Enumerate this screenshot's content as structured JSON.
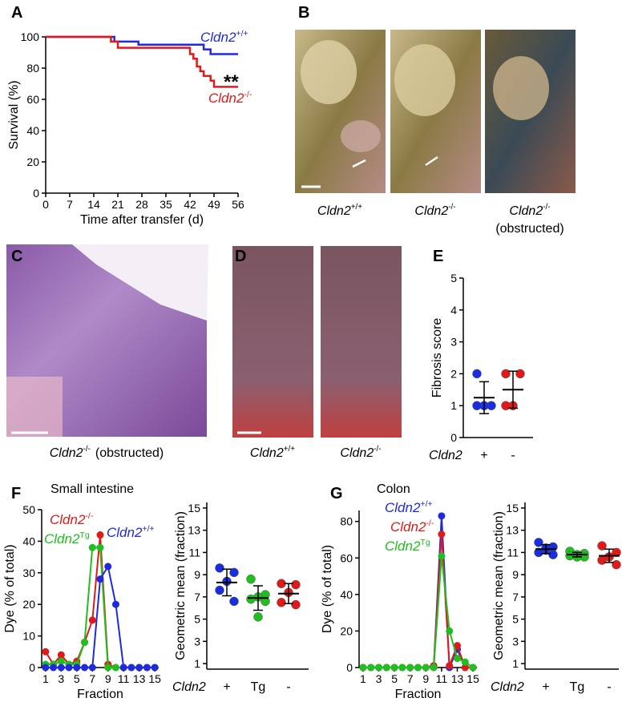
{
  "chart_data": [
    {
      "panel": "A",
      "type": "step",
      "xlabel": "Time after transfer (d)",
      "ylabel": "Survival (%)",
      "annotation": "**",
      "xlim": [
        0,
        56
      ],
      "ylim": [
        0,
        100
      ],
      "xticks": [
        0,
        7,
        14,
        21,
        28,
        35,
        42,
        49,
        56
      ],
      "yticks": [
        0,
        20,
        40,
        60,
        80,
        100
      ],
      "series": [
        {
          "name": "Cldn2",
          "sup": "+/+",
          "color": "#1f2ae0",
          "x": [
            0,
            20,
            27,
            46,
            48,
            56
          ],
          "values": [
            100,
            97,
            95,
            92,
            89,
            89
          ]
        },
        {
          "name": "Cldn2",
          "sup": "-/-",
          "color": "#e01a1a",
          "x": [
            0,
            19,
            21,
            42,
            43,
            44,
            45,
            46,
            48,
            49,
            56
          ],
          "values": [
            100,
            97,
            93,
            89,
            86,
            81,
            78,
            75,
            72,
            68,
            68
          ]
        }
      ]
    },
    {
      "panel": "E",
      "type": "dot",
      "ylabel": "Fibrosis score",
      "xlabel": "Cldn2",
      "categories": [
        "+",
        "-"
      ],
      "colors": [
        "#1a2ee0",
        "#e01a1a"
      ],
      "ylim": [
        0,
        5
      ],
      "yticks": [
        0,
        1,
        2,
        3,
        4,
        5
      ],
      "values": [
        [
          2,
          1,
          1,
          1
        ],
        [
          2,
          2,
          1,
          1
        ]
      ],
      "means": [
        1.25,
        1.5
      ],
      "errors": [
        0.5,
        0.58
      ]
    },
    {
      "panel": "F",
      "type": "line",
      "title": "Small intestine",
      "xlabel": "Fraction",
      "ylabel": "Dye (% of total)",
      "x": [
        1,
        2,
        3,
        4,
        5,
        6,
        7,
        8,
        9,
        10,
        11,
        12,
        13,
        14,
        15
      ],
      "xlim": [
        0.5,
        15.5
      ],
      "xticks": [
        1,
        3,
        5,
        7,
        9,
        11,
        13,
        15
      ],
      "ylim": [
        0,
        50
      ],
      "yticks": [
        0,
        10,
        20,
        30,
        40,
        50
      ],
      "series": [
        {
          "name": "Cldn2",
          "sup": "-/-",
          "color": "#e01a1a",
          "values": [
            5,
            1,
            4,
            1,
            2,
            8,
            15,
            42,
            1,
            0,
            0,
            0,
            0,
            0,
            0
          ]
        },
        {
          "name": "Cldn2",
          "sup": "Tg",
          "color": "#1fbf1f",
          "values": [
            1,
            1,
            2,
            1,
            1,
            8,
            38,
            38,
            0,
            0,
            0,
            0,
            0,
            0,
            0
          ]
        },
        {
          "name": "Cldn2",
          "sup": "+/+",
          "color": "#1f2ae0",
          "values": [
            0,
            0,
            0,
            0,
            0,
            0,
            0,
            28,
            32,
            20,
            0,
            0,
            0,
            0,
            0
          ]
        }
      ]
    },
    {
      "type": "dot",
      "ylabel": "Geometric mean (fraction)",
      "xlabel": "Cldn2",
      "categories": [
        "+",
        "Tg",
        "-"
      ],
      "colors": [
        "#1a2ee0",
        "#1fbf1f",
        "#e01a1a"
      ],
      "ylim": [
        0.5,
        15.5
      ],
      "yticks": [
        1,
        3,
        5,
        7,
        9,
        11,
        13,
        15
      ],
      "values": [
        [
          9.6,
          9.2,
          8.4,
          7.6,
          6.6
        ],
        [
          8.6,
          7.2,
          7.0,
          6.8,
          6.6,
          5.2
        ],
        [
          8.2,
          8.1,
          7.4,
          6.5,
          6.3
        ]
      ],
      "means": [
        8.3,
        6.9,
        7.3
      ],
      "errors": [
        1.2,
        1.1,
        0.9
      ]
    },
    {
      "panel": "G",
      "type": "line",
      "title": "Colon",
      "xlabel": "Fraction",
      "ylabel": "Dye (% of total)",
      "x": [
        1,
        2,
        3,
        4,
        5,
        6,
        7,
        8,
        9,
        10,
        11,
        12,
        13,
        14,
        15
      ],
      "xlim": [
        0.5,
        15.5
      ],
      "xticks": [
        1,
        3,
        5,
        7,
        9,
        11,
        13,
        15
      ],
      "ylim": [
        0,
        86
      ],
      "yticks": [
        0,
        20,
        40,
        60,
        80
      ],
      "series": [
        {
          "name": "Cldn2",
          "sup": "+/+",
          "color": "#1f2ae0",
          "values": [
            0,
            0,
            0,
            0,
            0,
            0,
            0,
            0,
            0,
            0,
            83,
            0,
            10,
            0,
            0
          ]
        },
        {
          "name": "Cldn2",
          "sup": "-/-",
          "color": "#e01a1a",
          "values": [
            0,
            0,
            0,
            0,
            0,
            0,
            0,
            0,
            0,
            1,
            73,
            1,
            12,
            0,
            0
          ]
        },
        {
          "name": "Cldn2",
          "sup": "Tg",
          "color": "#1fbf1f",
          "values": [
            0,
            0,
            0,
            0,
            0,
            0,
            0,
            0,
            0,
            0,
            61,
            20,
            5,
            3,
            0
          ]
        }
      ]
    },
    {
      "type": "dot",
      "ylabel": "Geometric mean (fraction)",
      "xlabel": "Cldn2",
      "categories": [
        "+",
        "Tg",
        "-"
      ],
      "colors": [
        "#1a2ee0",
        "#1fbf1f",
        "#e01a1a"
      ],
      "ylim": [
        0.5,
        15.5
      ],
      "yticks": [
        1,
        3,
        5,
        7,
        9,
        11,
        13,
        15
      ],
      "values": [
        [
          11.9,
          11.5,
          11.2,
          11.0,
          10.8,
          11.4
        ],
        [
          11.1,
          10.9,
          10.8,
          10.7,
          10.6,
          10.6
        ],
        [
          11.6,
          11.0,
          10.6,
          10.3,
          9.9,
          10.6
        ]
      ],
      "means": [
        11.3,
        10.8,
        10.7
      ],
      "errors": [
        0.4,
        0.2,
        0.6
      ]
    }
  ],
  "images": [
    {
      "panel": "B",
      "captions": [
        {
          "name": "Cldn2",
          "sup": "+/+"
        },
        {
          "name": "Cldn2",
          "sup": "-/-"
        },
        {
          "name": "Cldn2",
          "sup": "-/-",
          "note": "(obstructed)"
        }
      ]
    },
    {
      "panel": "C",
      "captions": [
        {
          "name": "Cldn2",
          "sup": "-/-",
          "note": "(obstructed)"
        }
      ]
    },
    {
      "panel": "D",
      "captions": [
        {
          "name": "Cldn2",
          "sup": "+/+"
        },
        {
          "name": "Cldn2",
          "sup": "-/-"
        }
      ]
    }
  ]
}
